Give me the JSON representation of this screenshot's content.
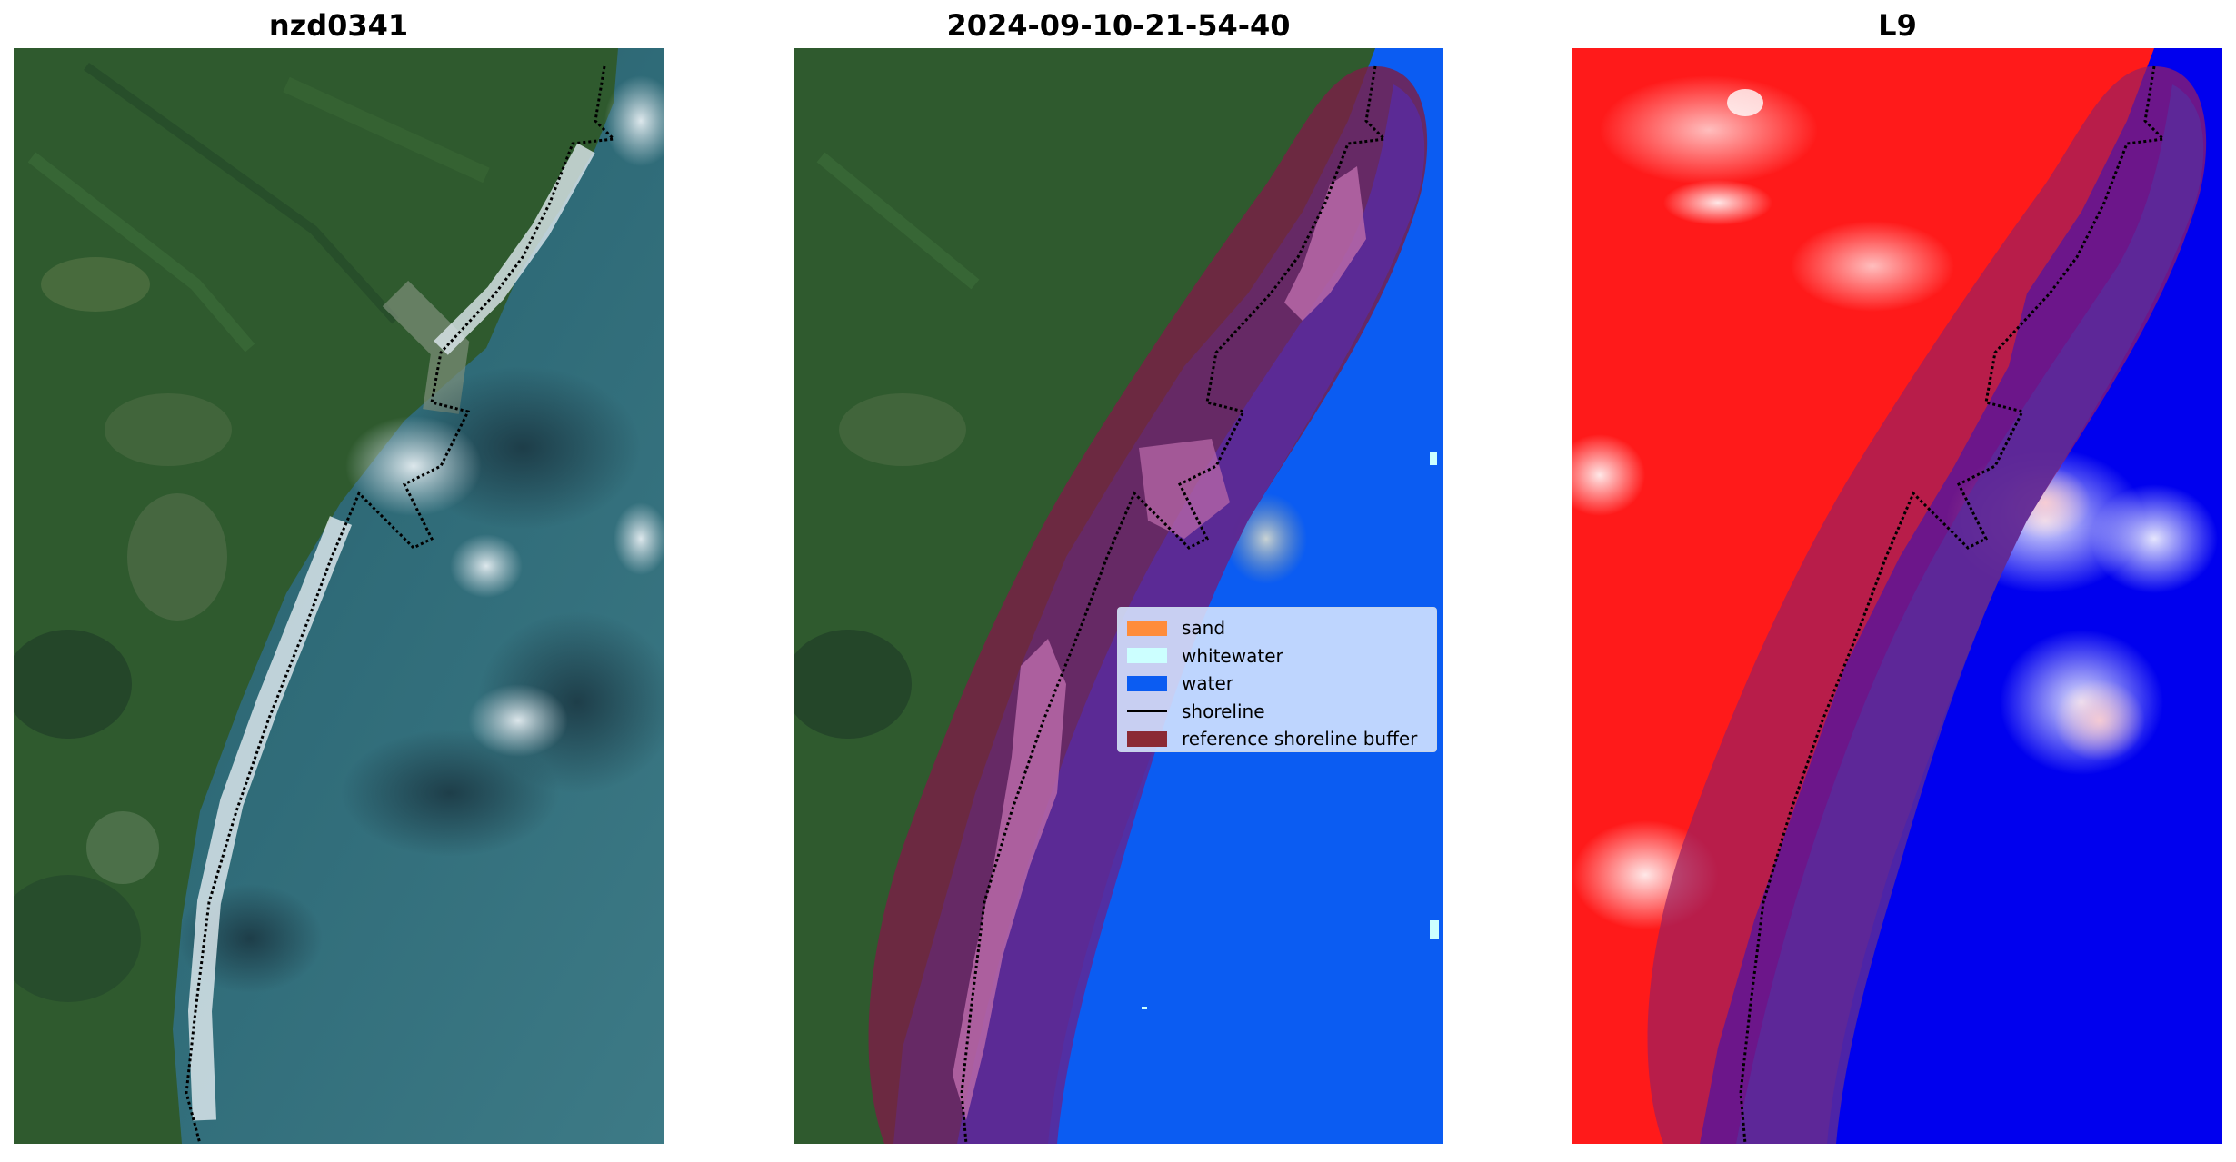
{
  "panels": [
    {
      "title": "nzd0341",
      "content": "satellite-rgb-image"
    },
    {
      "title": "2024-09-10-21-54-40",
      "content": "classified-image"
    },
    {
      "title": "L9",
      "content": "index-image"
    }
  ],
  "legend": {
    "entries": [
      {
        "label": "sand",
        "color": "#ff8c3a",
        "kind": "patch"
      },
      {
        "label": "whitewater",
        "color": "#ccffff",
        "kind": "patch"
      },
      {
        "label": "water",
        "color": "#0b5cf2",
        "kind": "patch"
      },
      {
        "label": "shoreline",
        "color": "#000000",
        "kind": "line"
      },
      {
        "label": "reference shoreline buffer",
        "color": "#8b2a35",
        "kind": "patch"
      }
    ]
  },
  "colors": {
    "land": "#2f5a2e",
    "sea": "#2f5e6a",
    "water_class": "#0b5cf2",
    "buffer": "#7a1f45",
    "index_high": "#ff1a1a",
    "index_low": "#0000ee"
  }
}
